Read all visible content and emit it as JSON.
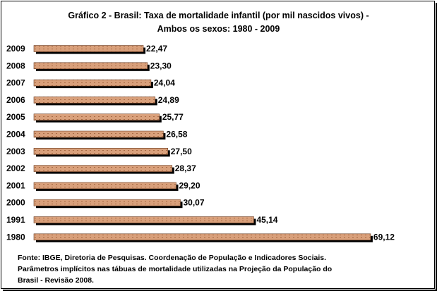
{
  "title_line1": "Gráfico 2 - Brasil: Taxa de mortalidade infantil (por mil nascidos vivos) -",
  "title_line2": "Ambos os sexos: 1980 - 2009",
  "source_line1": "Fonte: IBGE, Diretoria de Pesquisas. Coordenação de População e Indicadores Sociais.",
  "source_line2": "Parâmetros implícitos nas tábuas de mortalidade utilizadas na Projeção da População do",
  "source_line3": "Brasil - Revisão 2008.",
  "colors": {
    "bar_fill": "#d9a07b",
    "bar_shadow": "#000000",
    "bar_texture": "#a86b45"
  },
  "chart_data": {
    "type": "bar",
    "orientation": "horizontal",
    "title": "Gráfico 2 - Brasil: Taxa de mortalidade infantil (por mil nascidos vivos) - Ambos os sexos: 1980 - 2009",
    "categories": [
      "2009",
      "2008",
      "2007",
      "2006",
      "2005",
      "2004",
      "2003",
      "2002",
      "2001",
      "2000",
      "1991",
      "1980"
    ],
    "values": [
      22.47,
      23.3,
      24.04,
      24.89,
      25.77,
      26.58,
      27.5,
      28.37,
      29.2,
      30.07,
      45.14,
      69.12
    ],
    "value_labels": [
      "22,47",
      "23,30",
      "24,04",
      "24,89",
      "25,77",
      "26,58",
      "27,50",
      "28,37",
      "29,20",
      "30,07",
      "45,14",
      "69,12"
    ],
    "grid": false,
    "legend": "none"
  }
}
